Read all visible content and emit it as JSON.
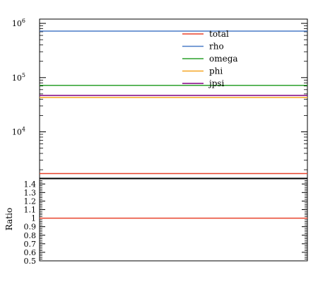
{
  "chart_data": [
    {
      "type": "line",
      "yscale": "log",
      "ylim": [
        1400,
        1200000
      ],
      "y_tick_labels": [
        {
          "base": "10",
          "exp": "4",
          "value": 10000
        },
        {
          "base": "10",
          "exp": "5",
          "value": 100000
        },
        {
          "base": "10",
          "exp": "6",
          "value": 1000000
        }
      ],
      "x_tick_labels": [],
      "legend_position": "top-right",
      "grid": false,
      "series": [
        {
          "name": "total",
          "color": "#e8432c",
          "values": [
            1700,
            1700
          ]
        },
        {
          "name": "rho",
          "color": "#4a7cc7",
          "values": [
            720000,
            720000
          ]
        },
        {
          "name": "omega",
          "color": "#2ca02c",
          "values": [
            72000,
            72000
          ]
        },
        {
          "name": "phi",
          "color": "#f5a623",
          "values": [
            43000,
            43000
          ]
        },
        {
          "name": "jpsi",
          "color": "#800080",
          "values": [
            47000,
            47000
          ]
        }
      ]
    },
    {
      "type": "line",
      "ylabel": "Ratio",
      "ylim": [
        0.5,
        1.46
      ],
      "y_tick_labels": [
        "0.5",
        "0.6",
        "0.7",
        "0.8",
        "0.9",
        "1",
        "1.1",
        "1.2",
        "1.3",
        "1.4"
      ],
      "x_tick_labels": [],
      "grid": false,
      "series": [
        {
          "name": "total",
          "color": "#e8432c",
          "values": [
            1,
            1
          ]
        }
      ]
    }
  ]
}
